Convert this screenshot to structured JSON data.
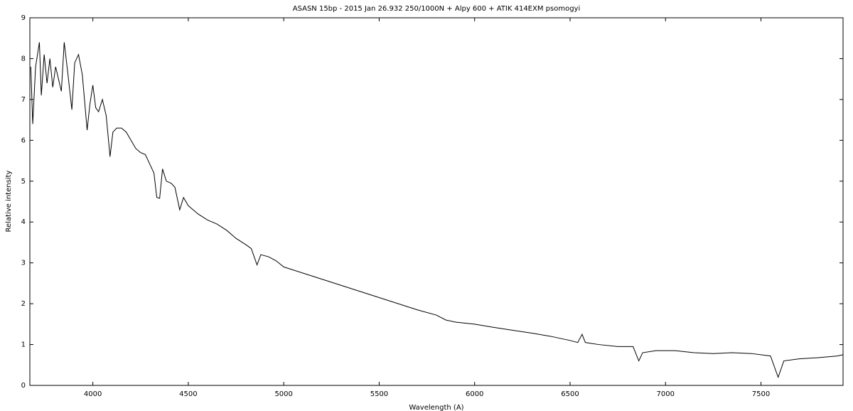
{
  "chart_data": {
    "type": "line",
    "title": "ASASN 15bp - 2015 Jan 26.932 250/1000N + Alpy 600 + ATIK 414EXM psomogyi",
    "x_label": "Wavelength (A)",
    "y_label": "Relative intensity",
    "x": [
      3675,
      3685,
      3700,
      3720,
      3730,
      3745,
      3760,
      3775,
      3790,
      3805,
      3820,
      3835,
      3850,
      3870,
      3890,
      3905,
      3925,
      3945,
      3970,
      3985,
      4000,
      4015,
      4030,
      4050,
      4070,
      4090,
      4105,
      4125,
      4150,
      4175,
      4200,
      4225,
      4250,
      4275,
      4300,
      4320,
      4335,
      4350,
      4365,
      4385,
      4410,
      4430,
      4455,
      4475,
      4500,
      4550,
      4600,
      4650,
      4700,
      4750,
      4800,
      4830,
      4860,
      4880,
      4920,
      4960,
      5000,
      5100,
      5200,
      5300,
      5400,
      5500,
      5600,
      5700,
      5800,
      5850,
      5900,
      6000,
      6100,
      6200,
      6300,
      6400,
      6500,
      6540,
      6563,
      6580,
      6650,
      6750,
      6830,
      6860,
      6880,
      6950,
      7050,
      7150,
      7250,
      7350,
      7450,
      7550,
      7590,
      7620,
      7700,
      7800,
      7900,
      7930
    ],
    "series": [
      {
        "color": "#000000",
        "values": [
          7.8,
          6.4,
          7.8,
          8.4,
          7.1,
          8.1,
          7.4,
          8.0,
          7.3,
          7.8,
          7.5,
          7.2,
          8.4,
          7.6,
          6.75,
          7.9,
          8.1,
          7.6,
          6.25,
          6.9,
          7.35,
          6.8,
          6.7,
          7.0,
          6.6,
          5.6,
          6.2,
          6.3,
          6.3,
          6.2,
          6.0,
          5.8,
          5.7,
          5.65,
          5.4,
          5.2,
          4.6,
          4.58,
          5.3,
          5.0,
          4.95,
          4.85,
          4.3,
          4.6,
          4.4,
          4.2,
          4.05,
          3.95,
          3.8,
          3.6,
          3.45,
          3.35,
          2.95,
          3.2,
          3.15,
          3.05,
          2.9,
          2.75,
          2.6,
          2.45,
          2.3,
          2.15,
          2.0,
          1.85,
          1.72,
          1.6,
          1.55,
          1.5,
          1.42,
          1.35,
          1.28,
          1.2,
          1.1,
          1.05,
          1.25,
          1.05,
          1.0,
          0.95,
          0.95,
          0.6,
          0.8,
          0.85,
          0.85,
          0.8,
          0.78,
          0.8,
          0.78,
          0.72,
          0.2,
          0.6,
          0.65,
          0.68,
          0.72,
          0.75
        ]
      }
    ],
    "xlim": [
      3670,
      7930
    ],
    "ylim": [
      0,
      9
    ],
    "xticks": [
      4000,
      4500,
      5000,
      5500,
      6000,
      6500,
      7000,
      7500
    ],
    "yticks": [
      0,
      1,
      2,
      3,
      4,
      5,
      6,
      7,
      8,
      9
    ],
    "grid": false
  }
}
